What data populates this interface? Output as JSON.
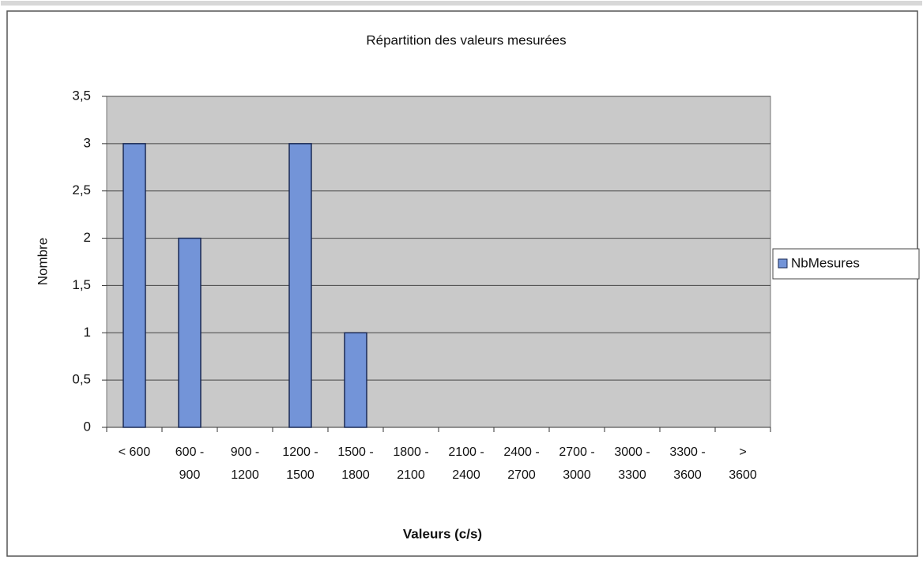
{
  "chart_data": {
    "type": "bar",
    "title": "Répartition des valeurs mesurées",
    "x_label": "Valeurs (c/s)",
    "y_label": "Nombre",
    "categories": [
      "< 600",
      "600 - 900",
      "900 - 1200",
      "1200 - 1500",
      "1500 - 1800",
      "1800 - 2100",
      "2100 - 2400",
      "2400 - 2700",
      "2700 - 3000",
      "3000 - 3300",
      "3300 - 3600",
      "> 3600"
    ],
    "series": [
      {
        "name": "NbMesures",
        "color": "#7394d8",
        "values": [
          3,
          2,
          0,
          3,
          1,
          0,
          0,
          0,
          0,
          0,
          0,
          0
        ]
      }
    ],
    "ylim": [
      0,
      3.5
    ],
    "yticks": [
      0,
      {
        "value": 0.5,
        "label": "0,5"
      },
      1,
      {
        "value": 1.5,
        "label": "1,5"
      },
      2,
      {
        "value": 2.5,
        "label": "2,5"
      },
      3,
      {
        "value": 3.5,
        "label": "3,5"
      }
    ],
    "grid": true,
    "legend": "right"
  }
}
